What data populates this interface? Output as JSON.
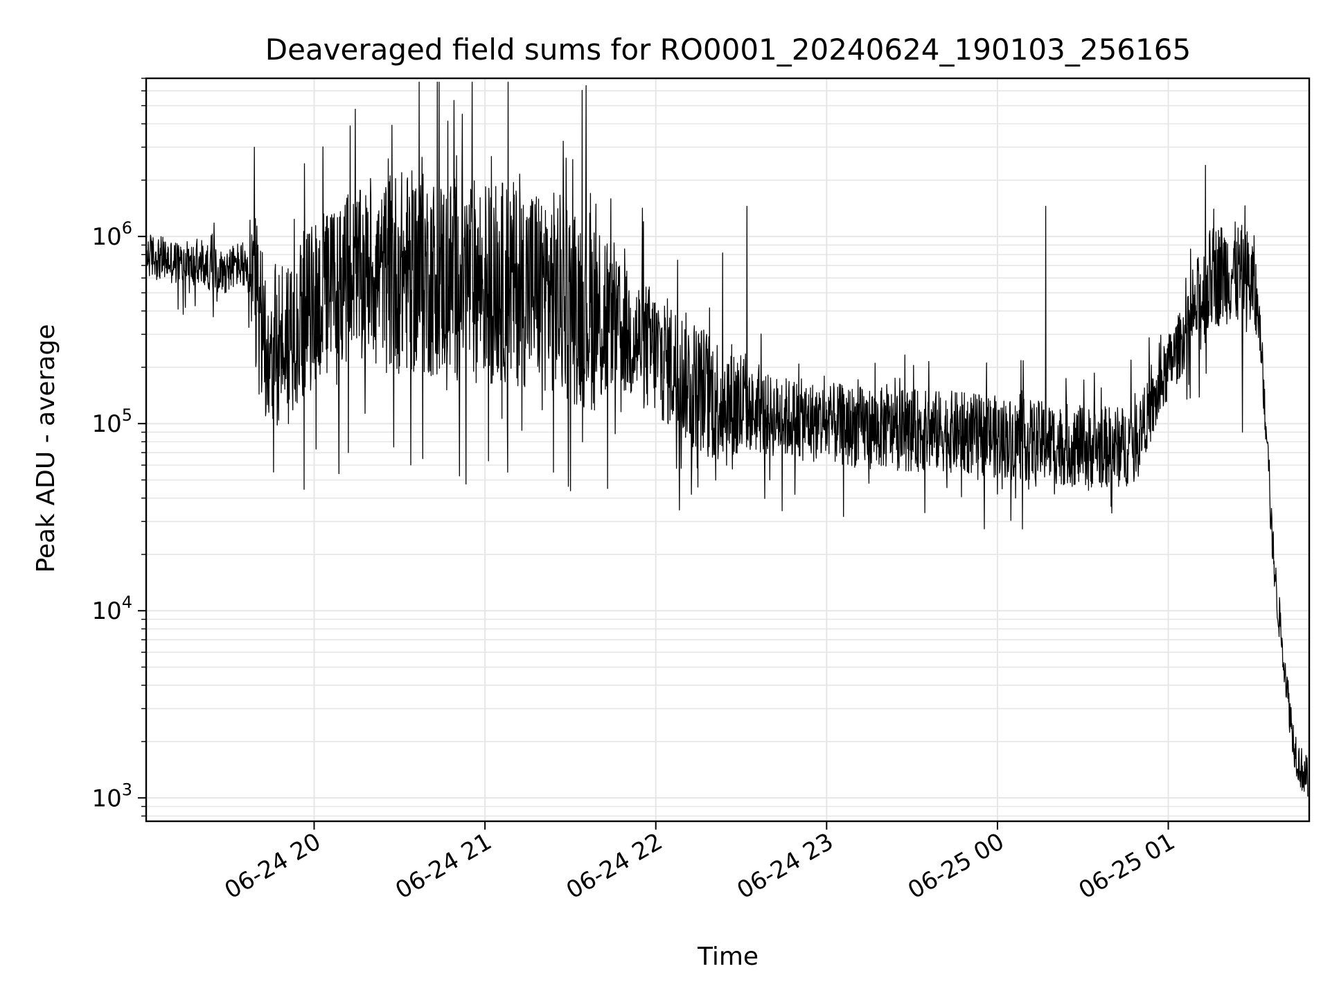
{
  "chart_data": {
    "type": "line",
    "title": "Deaveraged field sums for RO0001_20240624_190103_256165",
    "xlabel": "Time",
    "ylabel": "Peak ADU - average",
    "yscale": "log",
    "ylim": [
      750,
      7000000
    ],
    "xlim": [
      "2024-06-24 19:01:00",
      "2024-06-25 01:49:30"
    ],
    "grid": "on",
    "line_color": "#000000",
    "grid_color": "#e6e6e6",
    "x_ticks": [
      {
        "time": "2024-06-24 20:00",
        "label": "06-24 20"
      },
      {
        "time": "2024-06-24 21:00",
        "label": "06-24 21"
      },
      {
        "time": "2024-06-24 22:00",
        "label": "06-24 22"
      },
      {
        "time": "2024-06-24 23:00",
        "label": "06-24 23"
      },
      {
        "time": "2024-06-25 00:00",
        "label": "06-25 00"
      },
      {
        "time": "2024-06-25 01:00",
        "label": "06-25 01"
      }
    ],
    "y_ticks": [
      {
        "value": 1000,
        "base": "10",
        "exp": "3"
      },
      {
        "value": 10000,
        "base": "10",
        "exp": "4"
      },
      {
        "value": 100000,
        "base": "10",
        "exp": "5"
      },
      {
        "value": 1000000,
        "base": "10",
        "exp": "6"
      }
    ],
    "series": [
      {
        "points": [
          [
            "2024-06-24 19:01",
            800000
          ],
          [
            "2024-06-24 19:08",
            750000
          ],
          [
            "2024-06-24 19:15",
            700000
          ],
          [
            "2024-06-24 19:22",
            690000
          ],
          [
            "2024-06-24 19:28",
            650000
          ],
          [
            "2024-06-24 19:34",
            720000
          ],
          [
            "2024-06-24 19:38",
            550000
          ],
          [
            "2024-06-24 19:42",
            300000
          ],
          [
            "2024-06-24 19:46",
            250000
          ],
          [
            "2024-06-24 19:50",
            300000
          ],
          [
            "2024-06-24 19:54",
            350000
          ],
          [
            "2024-06-24 19:58",
            400000
          ],
          [
            "2024-06-24 20:05",
            500000
          ],
          [
            "2024-06-24 20:10",
            600000
          ],
          [
            "2024-06-24 20:20",
            650000
          ],
          [
            "2024-06-24 20:30",
            650000
          ],
          [
            "2024-06-24 20:40",
            620000
          ],
          [
            "2024-06-24 20:50",
            600000
          ],
          [
            "2024-06-24 21:00",
            580000
          ],
          [
            "2024-06-24 21:10",
            560000
          ],
          [
            "2024-06-24 21:20",
            540000
          ],
          [
            "2024-06-24 21:30",
            450000
          ],
          [
            "2024-06-24 21:40",
            400000
          ],
          [
            "2024-06-24 21:50",
            300000
          ],
          [
            "2024-06-24 22:00",
            240000
          ],
          [
            "2024-06-24 22:10",
            180000
          ],
          [
            "2024-06-24 22:20",
            140000
          ],
          [
            "2024-06-24 22:30",
            120000
          ],
          [
            "2024-06-24 22:40",
            110000
          ],
          [
            "2024-06-24 22:50",
            105000
          ],
          [
            "2024-06-24 23:00",
            100000
          ],
          [
            "2024-06-24 23:15",
            95000
          ],
          [
            "2024-06-24 23:30",
            92000
          ],
          [
            "2024-06-24 23:45",
            90000
          ],
          [
            "2024-06-25 00:00",
            85000
          ],
          [
            "2024-06-25 00:15",
            80000
          ],
          [
            "2024-06-25 00:30",
            75000
          ],
          [
            "2024-06-25 00:45",
            75000
          ],
          [
            "2024-06-25 00:50",
            95000
          ],
          [
            "2024-06-25 00:55",
            125000
          ],
          [
            "2024-06-25 01:00",
            200000
          ],
          [
            "2024-06-25 01:05",
            280000
          ],
          [
            "2024-06-25 01:10",
            400000
          ],
          [
            "2024-06-25 01:15",
            600000
          ],
          [
            "2024-06-25 01:20",
            650000
          ],
          [
            "2024-06-25 01:25",
            620000
          ],
          [
            "2024-06-25 01:30",
            550000
          ],
          [
            "2024-06-25 01:32",
            350000
          ],
          [
            "2024-06-25 01:34",
            110000
          ],
          [
            "2024-06-25 01:35",
            90000
          ],
          [
            "2024-06-25 01:36",
            30000
          ],
          [
            "2024-06-25 01:37",
            20000
          ],
          [
            "2024-06-25 01:38",
            12000
          ],
          [
            "2024-06-25 01:40",
            7000
          ],
          [
            "2024-06-25 01:42",
            3500
          ],
          [
            "2024-06-25 01:44",
            2000
          ],
          [
            "2024-06-25 01:46",
            1500
          ],
          [
            "2024-06-25 01:49",
            1250
          ]
        ],
        "spikes": [
          [
            "2024-06-24 19:39",
            3000000
          ],
          [
            "2024-06-24 20:26",
            2600000
          ],
          [
            "2024-06-24 20:50",
            2700000
          ],
          [
            "2024-06-24 20:52",
            4500000
          ],
          [
            "2024-06-24 21:37",
            1700000
          ],
          [
            "2024-06-24 22:32",
            1450000
          ],
          [
            "2024-06-25 00:17",
            1450000
          ],
          [
            "2024-06-25 01:13",
            2400000
          ],
          [
            "2024-06-25 01:16",
            1400000
          ]
        ],
        "dips": [
          [
            "2024-06-24 19:43",
            110000
          ],
          [
            "2024-06-24 19:51",
            100000
          ],
          [
            "2024-06-24 20:12",
            70000
          ],
          [
            "2024-06-24 20:28",
            75000
          ],
          [
            "2024-06-24 21:08",
            55000
          ],
          [
            "2024-06-24 21:24",
            55000
          ],
          [
            "2024-06-24 21:43",
            45000
          ],
          [
            "2024-06-24 22:40",
            50000
          ],
          [
            "2024-06-25 00:00",
            42000
          ],
          [
            "2024-06-25 00:20",
            42000
          ],
          [
            "2024-06-25 00:32",
            44000
          ],
          [
            "2024-06-25 01:26",
            90000
          ]
        ]
      }
    ]
  }
}
